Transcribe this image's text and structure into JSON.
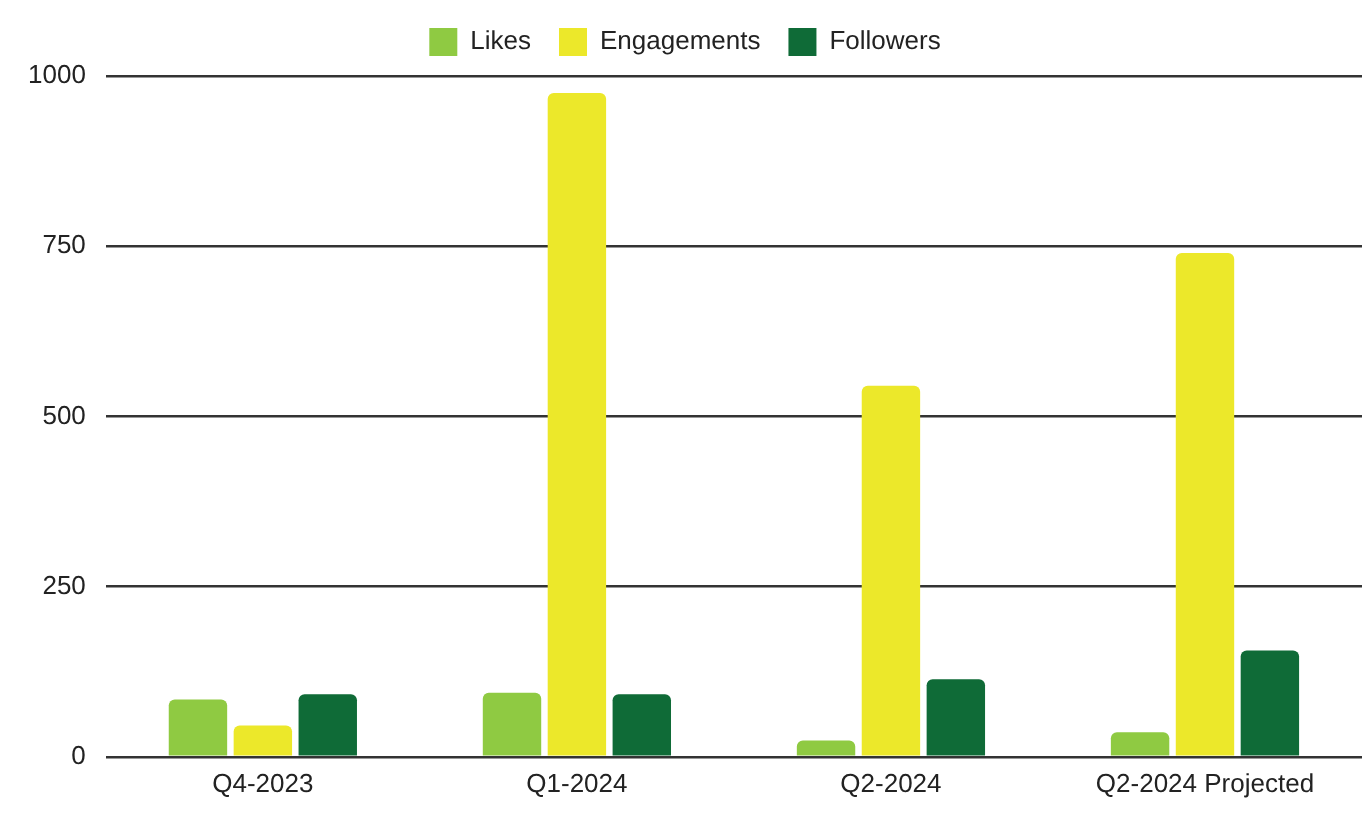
{
  "chart_data": {
    "type": "bar",
    "categories": [
      "Q4-2023",
      "Q1-2024",
      "Q2-2024",
      "Q2-2024 Projected"
    ],
    "series": [
      {
        "name": "Likes",
        "color": "#8fca42",
        "values": [
          84,
          94,
          24,
          36
        ]
      },
      {
        "name": "Engagements",
        "color": "#ece82a",
        "values": [
          46,
          975,
          545,
          740
        ]
      },
      {
        "name": "Followers",
        "color": "#0f6b37",
        "values": [
          92,
          92,
          114,
          156
        ]
      }
    ],
    "ylim": [
      0,
      1000
    ],
    "yticks": [
      0,
      250,
      500,
      750,
      1000
    ],
    "grid": "y",
    "legend": "top"
  }
}
